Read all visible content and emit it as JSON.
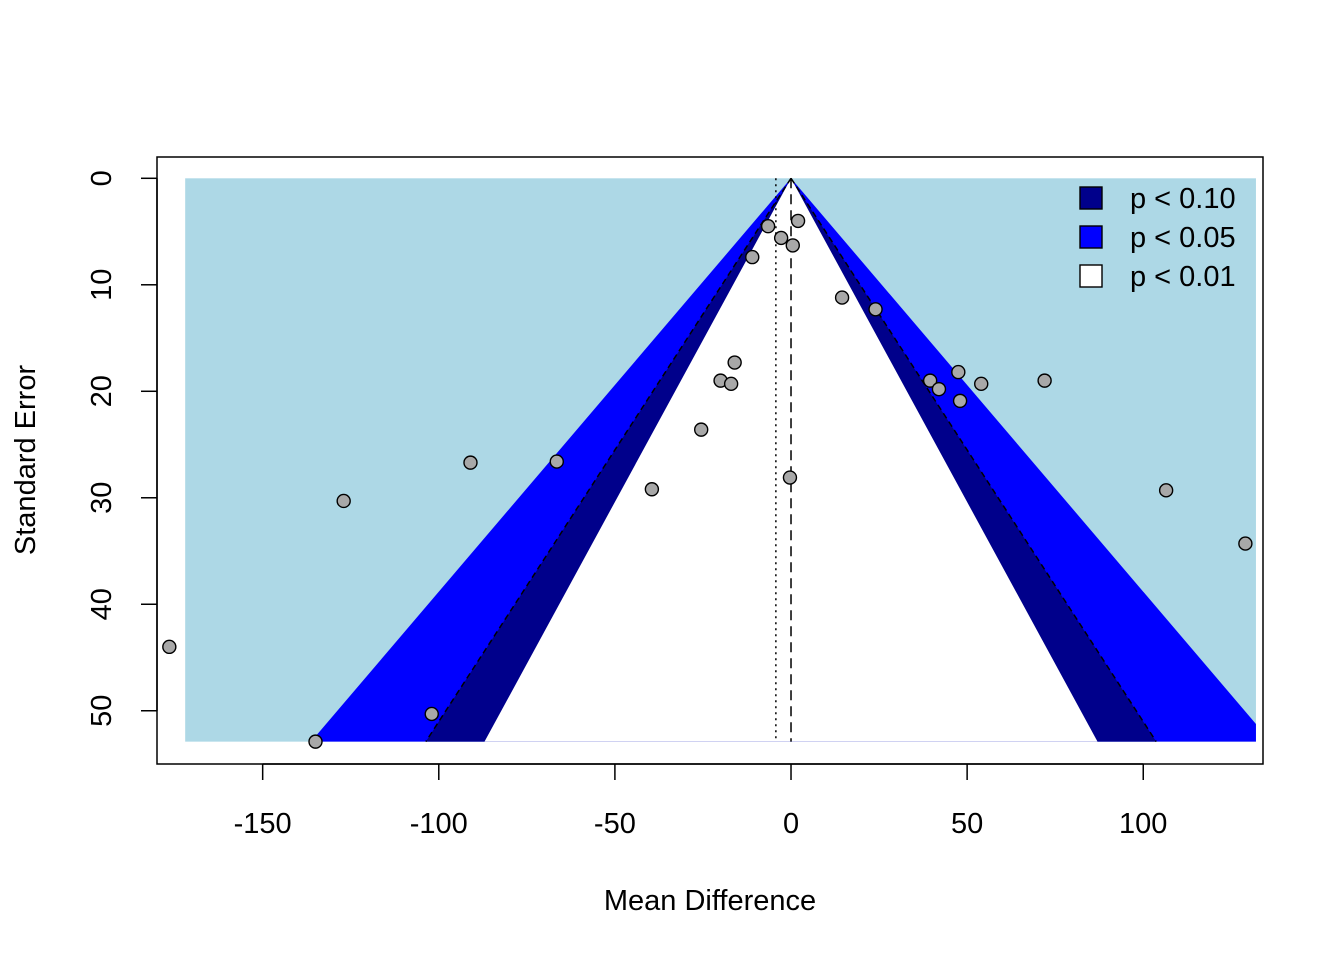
{
  "chart_data": {
    "type": "scatter",
    "subtype": "contour-enhanced funnel plot",
    "xlabel": "Mean Difference",
    "ylabel": "Standard Error",
    "xlim": [
      -180,
      134
    ],
    "ylim": [
      55,
      -2
    ],
    "y_reversed": true,
    "x_ticks": [
      -150,
      -100,
      -50,
      0,
      50,
      100
    ],
    "x_tick_labels": [
      "-150",
      "-100",
      "-50",
      "0",
      "50",
      "100"
    ],
    "y_ticks": [
      0,
      10,
      20,
      30,
      40,
      50
    ],
    "y_tick_labels": [
      "0",
      "10",
      "20",
      "30",
      "40",
      "50"
    ],
    "reference_line_solid_dashed": 0,
    "pooled_estimate_dotted": -4.3,
    "se_max": 52.9,
    "region_x_extent": [
      -172,
      132
    ],
    "contours": [
      {
        "label": "p < 0.10",
        "z": 1.645,
        "color": "#00008B"
      },
      {
        "label": "p < 0.05",
        "z": 1.96,
        "color": "#0000FF"
      },
      {
        "label": "p < 0.01",
        "z": 2.576,
        "color": "#FFFFFF"
      }
    ],
    "background_color": "#ADD8E6",
    "legend": {
      "position": "top-right",
      "entries": [
        {
          "label": "p < 0.10",
          "color": "#00008B"
        },
        {
          "label": "p < 0.05",
          "color": "#0000FF"
        },
        {
          "label": "p < 0.01",
          "color": "#FFFFFF"
        }
      ]
    },
    "point_color": "#A8A8A8",
    "points": [
      {
        "x": 2,
        "y": 4.0
      },
      {
        "x": -6.5,
        "y": 4.5
      },
      {
        "x": -2.8,
        "y": 5.6
      },
      {
        "x": 0.5,
        "y": 6.3
      },
      {
        "x": -11,
        "y": 7.4
      },
      {
        "x": 14.5,
        "y": 11.2
      },
      {
        "x": 24,
        "y": 12.3
      },
      {
        "x": -16,
        "y": 17.3
      },
      {
        "x": 47.5,
        "y": 18.2
      },
      {
        "x": -20,
        "y": 19.0
      },
      {
        "x": 39.5,
        "y": 19.0
      },
      {
        "x": 72,
        "y": 19.0
      },
      {
        "x": -17,
        "y": 19.3
      },
      {
        "x": 54,
        "y": 19.3
      },
      {
        "x": 42,
        "y": 19.8
      },
      {
        "x": 48,
        "y": 20.9
      },
      {
        "x": -25.5,
        "y": 23.6
      },
      {
        "x": -91,
        "y": 26.7
      },
      {
        "x": -66.5,
        "y": 26.6
      },
      {
        "x": -0.3,
        "y": 28.1
      },
      {
        "x": -39.5,
        "y": 29.2
      },
      {
        "x": 106.5,
        "y": 29.3
      },
      {
        "x": -127,
        "y": 30.3
      },
      {
        "x": 129,
        "y": 34.3
      },
      {
        "x": -176.5,
        "y": 44.0
      },
      {
        "x": -102,
        "y": 50.3
      },
      {
        "x": -135,
        "y": 52.9
      }
    ]
  }
}
